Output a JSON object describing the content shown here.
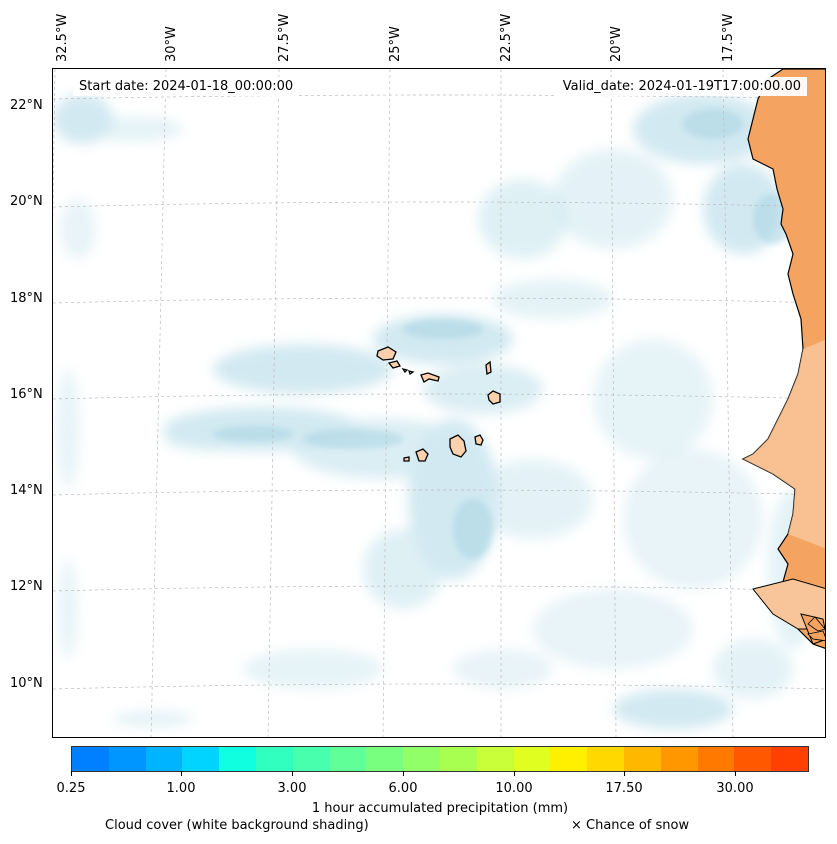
{
  "map": {
    "start_date": "Start date: 2024-01-18_00:00:00",
    "valid_date": "Valid_date: 2024-01-19T17:00:00.00",
    "longitude_labels": [
      "32.5°W",
      "30°W",
      "27.5°W",
      "25°W",
      "22.5°W",
      "20°W",
      "17.5°W"
    ],
    "latitude_labels": [
      "22°N",
      "20°N",
      "18°N",
      "16°N",
      "14°N",
      "12°N",
      "10°N"
    ],
    "colors": {
      "land": "#f4a460",
      "cloud_cover": "#add8e6",
      "coastline": "#000000",
      "gridline": "#bbbbbb"
    },
    "features": [
      "Cape Verde islands",
      "West African coastline"
    ]
  },
  "colorbar": {
    "label": "1 hour accumulated precipitation (mm)",
    "tick_labels": [
      "0.25",
      "1.00",
      "3.00",
      "6.00",
      "10.00",
      "17.50",
      "30.00"
    ],
    "colors": [
      "#0080ff",
      "#0096ff",
      "#00b4ff",
      "#00d4ff",
      "#10ffe0",
      "#30ffc0",
      "#48ffae",
      "#60ff98",
      "#78ff80",
      "#90ff68",
      "#a8ff50",
      "#c8ff38",
      "#e0ff20",
      "#fff000",
      "#ffd800",
      "#ffb800",
      "#ff9800",
      "#ff7800",
      "#ff5800",
      "#ff4000"
    ]
  },
  "legend": {
    "cloud_cover": "Cloud cover (white background shading)",
    "snow": "× Chance of snow"
  }
}
